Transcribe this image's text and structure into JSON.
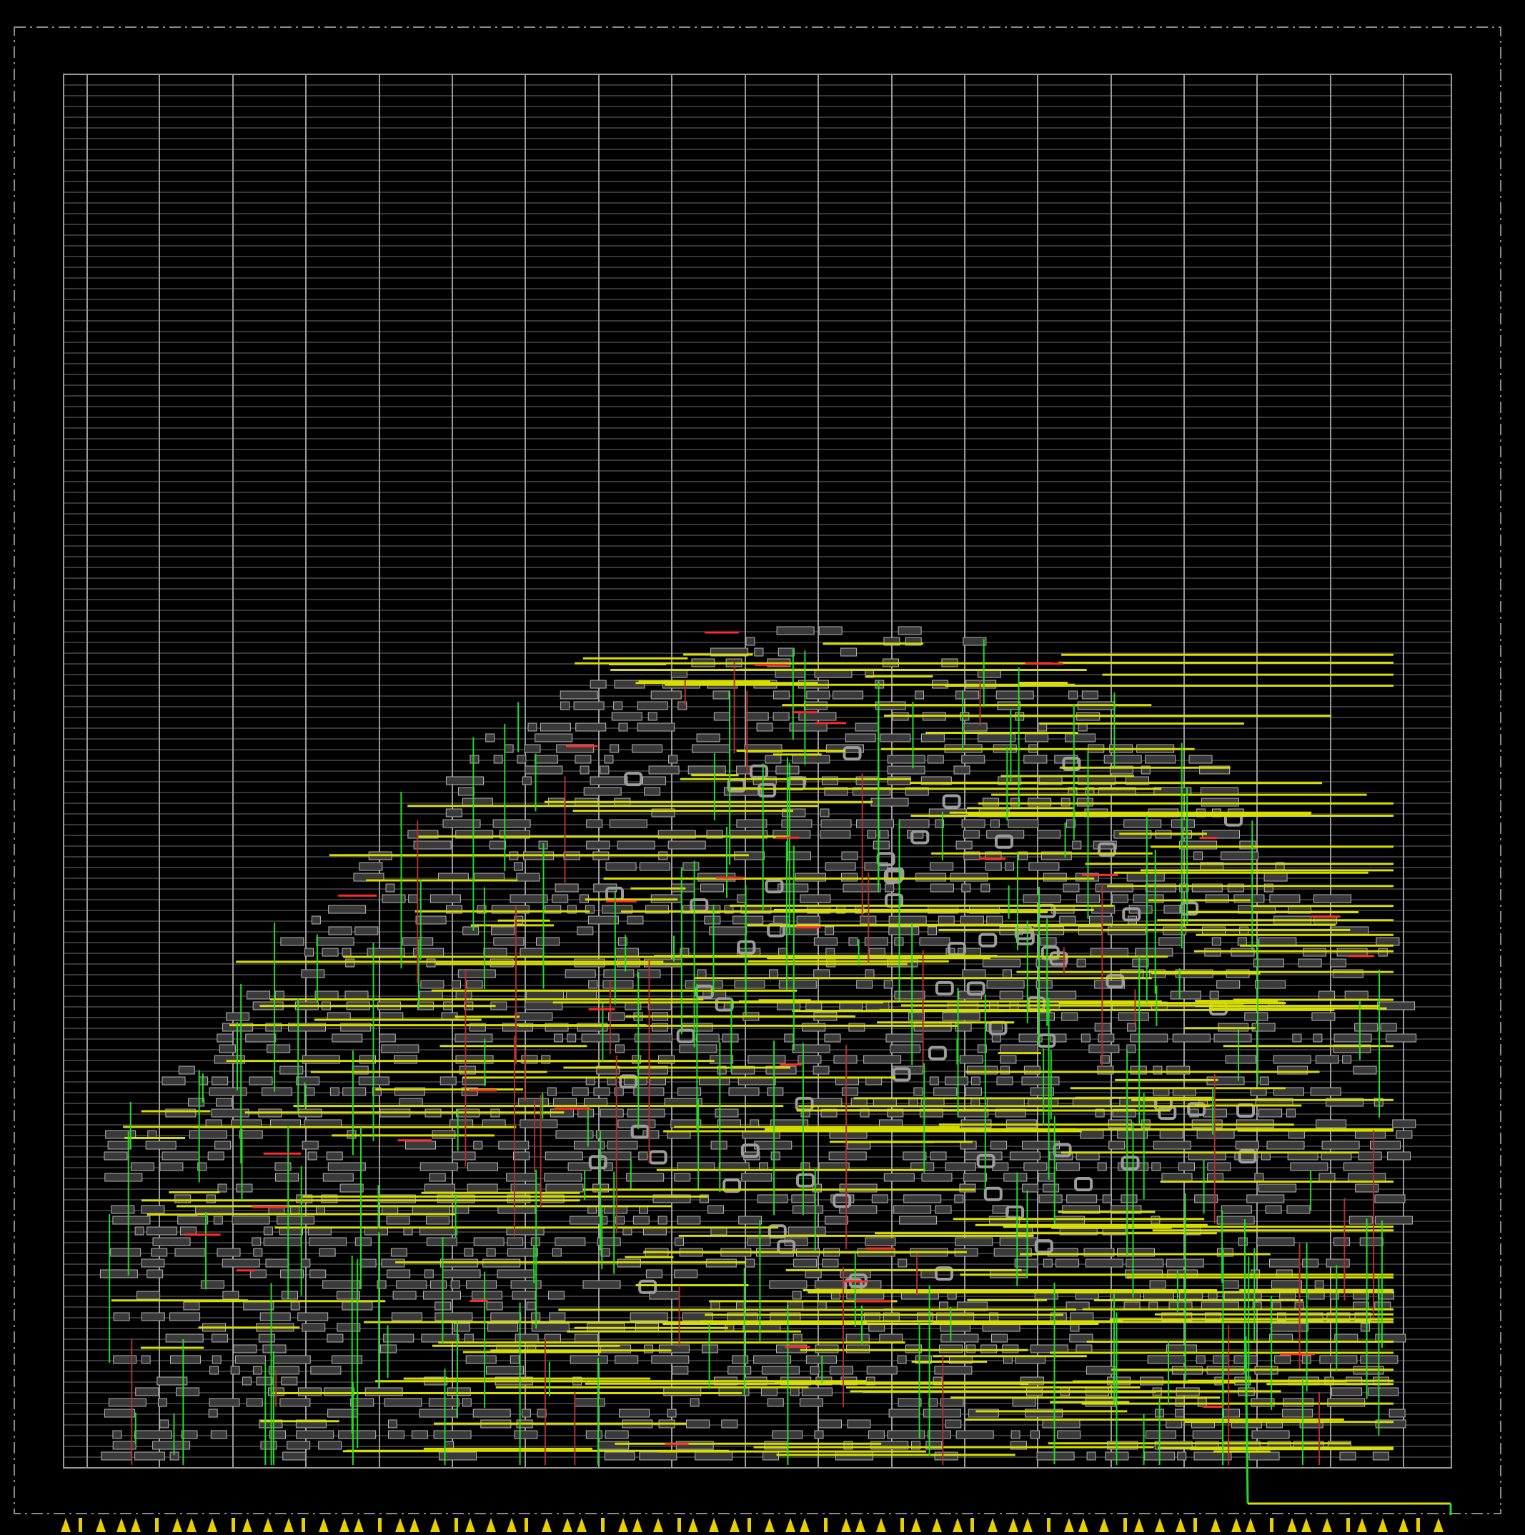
{
  "view": {
    "background": "#000000",
    "colors": {
      "die_outline": "#8a8a8a",
      "row_lines": "#6e6e6e",
      "power_stripes": "#9a9a9a",
      "cell_outline": "#b4b4b4",
      "cell_fill": "#3a3a3a",
      "via_outline": "#9c9c9c",
      "metal_horizontal": "#d8dd00",
      "metal_vertical": "#22dd22",
      "metal_alt": "#b03030",
      "short_segment": "#ff2a2a",
      "io_pin": "#e8d000"
    },
    "icons": [
      "io-pin-triangle-icon",
      "io-pin-bar-icon"
    ]
  }
}
